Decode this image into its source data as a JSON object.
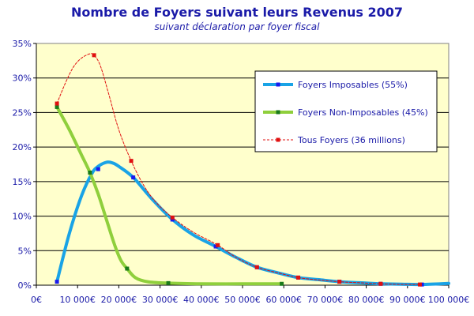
{
  "chart_data": {
    "type": "line",
    "title": "Nombre de Foyers suivant leurs Revenus  2007",
    "subtitle": "suivant déclaration par foyer fiscal",
    "xlabel": "",
    "ylabel": "",
    "xlim": [
      0,
      100000
    ],
    "ylim": [
      0,
      35
    ],
    "x_ticks": [
      0,
      10000,
      20000,
      30000,
      40000,
      50000,
      60000,
      70000,
      80000,
      90000,
      100000
    ],
    "x_tick_labels": [
      "0€",
      "10 000€",
      "20 000€",
      "30 000€",
      "40 000€",
      "50 000€",
      "60 000€",
      "70 000€",
      "80 000€",
      "90 000€",
      "100 000€"
    ],
    "y_ticks": [
      0,
      5,
      10,
      15,
      20,
      25,
      30,
      35
    ],
    "y_tick_labels": [
      "0%",
      "5%",
      "10%",
      "15%",
      "20%",
      "25%",
      "30%",
      "35%"
    ],
    "grid": "horizontal",
    "legend_position": "top-right",
    "plot_background": "#ffffcc",
    "series": [
      {
        "name": "Foyers Imposables (55%)",
        "color": "#19a3e6",
        "marker_color": "#1a1aee",
        "style": "solid-thick",
        "x": [
          5000,
          15000,
          23500,
          33000,
          43500,
          53500,
          63500,
          73500,
          83500,
          93500
        ],
        "values": [
          0.5,
          16.8,
          15.6,
          9.5,
          5.6,
          2.6,
          1.1,
          0.5,
          0.2,
          0.1
        ],
        "curve_x": [
          5000,
          8000,
          11000,
          13500,
          15000,
          17000,
          18500,
          20000,
          23500,
          28000,
          33000,
          38000,
          43500,
          48500,
          53500,
          58500,
          63500,
          68500,
          73500,
          78500,
          83500,
          88500,
          93500,
          100000
        ],
        "curve_y": [
          0.5,
          7.5,
          13.0,
          16.2,
          17.2,
          17.8,
          17.7,
          17.2,
          15.6,
          12.5,
          9.5,
          7.3,
          5.6,
          4.0,
          2.6,
          1.8,
          1.1,
          0.8,
          0.5,
          0.35,
          0.2,
          0.15,
          0.1,
          0.25
        ]
      },
      {
        "name": "Foyers Non-Imposables (45%)",
        "color": "#8fcf3c",
        "marker_color": "#1a7a1a",
        "style": "solid-thick",
        "x": [
          5000,
          13000,
          22000,
          32000,
          59500
        ],
        "values": [
          25.8,
          16.3,
          2.4,
          0.3,
          0.2
        ],
        "curve_x": [
          5000,
          8000,
          11000,
          13000,
          15000,
          17000,
          19000,
          20500,
          22000,
          24000,
          27000,
          32000,
          40000,
          50000,
          59500
        ],
        "curve_y": [
          25.8,
          22.5,
          18.8,
          16.3,
          13.2,
          9.5,
          5.8,
          3.6,
          2.4,
          1.1,
          0.5,
          0.3,
          0.2,
          0.2,
          0.2
        ]
      },
      {
        "name": "Tous Foyers (36 millions)",
        "color": "#e01010",
        "marker_color": "#e01010",
        "style": "dashed-thin",
        "x": [
          5000,
          14000,
          23000,
          33000,
          44000,
          53500,
          63500,
          73500,
          83500,
          93000
        ],
        "values": [
          26.3,
          33.3,
          18.0,
          9.8,
          5.8,
          2.6,
          1.1,
          0.5,
          0.2,
          0.1
        ],
        "curve_x": [
          5000,
          7000,
          9000,
          11000,
          13000,
          14000,
          15500,
          17500,
          20000,
          23000,
          26000,
          29000,
          33000,
          38000,
          44000,
          48500,
          53500,
          58500,
          63500,
          68500,
          73500,
          78500,
          83500,
          88500,
          93000
        ],
        "curve_y": [
          26.3,
          29.2,
          31.6,
          32.9,
          33.5,
          33.3,
          31.8,
          27.8,
          22.5,
          18.0,
          14.5,
          12.0,
          9.8,
          7.7,
          5.8,
          4.0,
          2.6,
          1.8,
          1.1,
          0.75,
          0.5,
          0.35,
          0.2,
          0.12,
          0.1
        ]
      }
    ]
  }
}
